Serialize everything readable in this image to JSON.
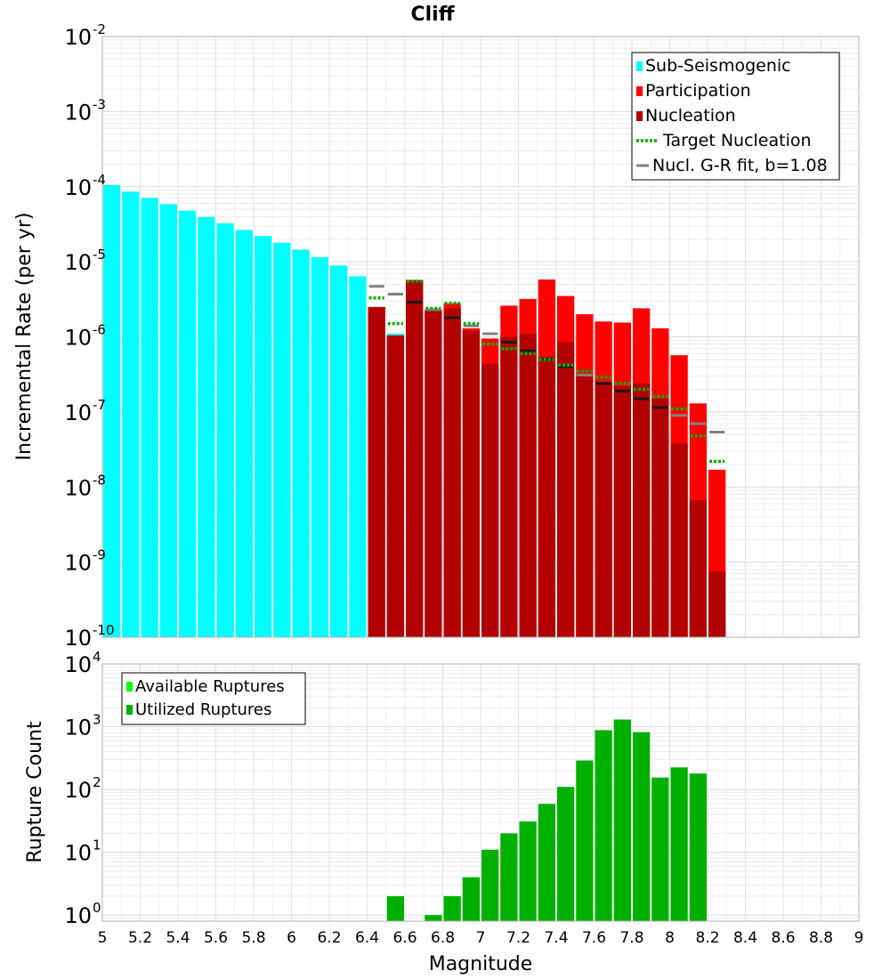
{
  "chart_data": [
    {
      "type": "bar",
      "title": "Cliff",
      "xlabel": "",
      "ylabel": "Incremental Rate (per yr)",
      "y_scale": "log",
      "ylim": [
        1e-10,
        0.01
      ],
      "xlim": [
        5,
        9
      ],
      "grid": true,
      "legend_position": "top-right",
      "y_tick_labels": [
        {
          "base": "10",
          "exp": "-2",
          "value": 0.01
        },
        {
          "base": "10",
          "exp": "-3",
          "value": 0.001
        },
        {
          "base": "10",
          "exp": "-4",
          "value": 0.0001
        },
        {
          "base": "10",
          "exp": "-5",
          "value": 1e-05
        },
        {
          "base": "10",
          "exp": "-6",
          "value": 1e-06
        },
        {
          "base": "10",
          "exp": "-7",
          "value": 1e-07
        },
        {
          "base": "10",
          "exp": "-8",
          "value": 1e-08
        },
        {
          "base": "10",
          "exp": "-9",
          "value": 1e-09
        },
        {
          "base": "10",
          "exp": "-10",
          "value": 1e-10
        }
      ],
      "bar_width": 0.1,
      "legend": [
        {
          "label": "Sub-Seismogenic",
          "color": "#00ffff",
          "symbol": "square"
        },
        {
          "label": "Participation",
          "color": "#ff0000",
          "symbol": "square"
        },
        {
          "label": "Nucleation",
          "color": "#b20000",
          "symbol": "square"
        },
        {
          "label": "Target Nucleation",
          "color": "#00b000",
          "symbol": "dotted-line"
        },
        {
          "label": "Nucl. G-R fit, b=1.08",
          "color": "#808080",
          "symbol": "line"
        }
      ],
      "series": [
        {
          "name": "Sub-Seismogenic",
          "color": "#00ffff",
          "x": [
            5.05,
            5.15,
            5.25,
            5.35,
            5.45,
            5.55,
            5.65,
            5.75,
            5.85,
            5.95,
            6.05,
            6.15,
            6.25,
            6.35
          ],
          "values": [
            0.000105,
            8.6e-05,
            7.1e-05,
            5.85e-05,
            4.8e-05,
            3.95e-05,
            3.25e-05,
            2.65e-05,
            2.2e-05,
            1.8e-05,
            1.45e-05,
            1.15e-05,
            8.9e-06,
            6.4e-06
          ]
        },
        {
          "name": "Participation",
          "color": "#ff0000",
          "x": [
            6.45,
            6.55,
            6.65,
            6.75,
            6.85,
            6.95,
            7.05,
            7.15,
            7.25,
            7.35,
            7.45,
            7.55,
            7.65,
            7.75,
            7.85,
            7.95,
            8.05,
            8.15,
            8.25
          ],
          "values": [
            2.5e-06,
            1.05e-06,
            5.7e-06,
            2.3e-06,
            2.8e-06,
            1.3e-06,
            9.5e-07,
            2.6e-06,
            3.2e-06,
            5.8e-06,
            3.5e-06,
            2e-06,
            1.6e-06,
            1.55e-06,
            2.4e-06,
            1.3e-06,
            5.7e-07,
            1.3e-07,
            1.7e-08
          ]
        },
        {
          "name": "Nucleation",
          "color": "#b20000",
          "x": [
            6.45,
            6.55,
            6.65,
            6.75,
            6.85,
            6.95,
            7.05,
            7.15,
            7.25,
            7.35,
            7.45,
            7.55,
            7.65,
            7.75,
            7.85,
            7.95,
            8.05,
            8.15,
            8.25
          ],
          "values": [
            2.5e-06,
            1.05e-06,
            5.7e-06,
            2.2e-06,
            2.4e-06,
            1.2e-06,
            4.4e-07,
            1e-06,
            1.1e-06,
            5.3e-07,
            8.5e-07,
            3e-07,
            2.5e-07,
            2.2e-07,
            2.4e-07,
            1.5e-07,
            3.8e-08,
            6.7e-09,
            7.5e-10
          ]
        },
        {
          "name": "Target Nucleation",
          "color": "#00b000",
          "x": [
            6.45,
            6.55,
            6.65,
            6.75,
            6.85,
            6.95,
            7.05,
            7.15,
            7.25,
            7.35,
            7.45,
            7.55,
            7.65,
            7.75,
            7.85,
            7.95,
            8.05,
            8.15,
            8.25
          ],
          "values": [
            3.3e-06,
            1.5e-06,
            5.5e-06,
            2.4e-06,
            2.8e-06,
            1.5e-06,
            8e-07,
            7e-07,
            6e-07,
            5e-07,
            4.2e-07,
            3.5e-07,
            2.9e-07,
            2.4e-07,
            2e-07,
            1.6e-07,
            1.1e-07,
            4.8e-08,
            2.2e-08
          ]
        },
        {
          "name": "Nucl. G-R fit, b=1.08",
          "color": "#808080",
          "x": [
            6.45,
            6.55,
            6.65,
            6.75,
            6.85,
            6.95,
            7.05,
            7.15,
            7.25,
            7.35,
            7.45,
            7.55,
            7.65,
            7.75,
            7.85,
            7.95,
            8.05,
            8.15,
            8.25
          ],
          "values": [
            4.7e-06,
            3.7e-06,
            2.9e-06,
            2.3e-06,
            1.8e-06,
            1.4e-06,
            1.1e-06,
            8.5e-07,
            6.5e-07,
            5.1e-07,
            4e-07,
            3.1e-07,
            2.4e-07,
            1.9e-07,
            1.5e-07,
            1.15e-07,
            9e-08,
            7e-08,
            5.4e-08
          ]
        }
      ]
    },
    {
      "type": "bar",
      "title": "",
      "xlabel": "Magnitude",
      "ylabel": "Rupture Count",
      "y_scale": "log",
      "ylim": [
        0.8,
        10000
      ],
      "xlim": [
        5,
        9
      ],
      "grid": true,
      "legend_position": "top-left",
      "x_tick_labels": [
        "5",
        "5.2",
        "5.4",
        "5.6",
        "5.8",
        "6",
        "6.2",
        "6.4",
        "6.6",
        "6.8",
        "7",
        "7.2",
        "7.4",
        "7.6",
        "7.8",
        "8",
        "8.2",
        "8.4",
        "8.6",
        "8.8",
        "9"
      ],
      "y_tick_labels": [
        {
          "base": "10",
          "exp": "4",
          "value": 10000
        },
        {
          "base": "10",
          "exp": "3",
          "value": 1000
        },
        {
          "base": "10",
          "exp": "2",
          "value": 100
        },
        {
          "base": "10",
          "exp": "1",
          "value": 10
        },
        {
          "base": "10",
          "exp": "0",
          "value": 1
        }
      ],
      "bar_width": 0.1,
      "legend": [
        {
          "label": "Available Ruptures",
          "color": "#00ff00",
          "symbol": "square"
        },
        {
          "label": "Utilized Ruptures",
          "color": "#00b000",
          "symbol": "square"
        }
      ],
      "series": [
        {
          "name": "Utilized Ruptures",
          "color": "#00b000",
          "x": [
            6.55,
            6.75,
            6.85,
            6.95,
            7.05,
            7.15,
            7.25,
            7.35,
            7.45,
            7.55,
            7.65,
            7.75,
            7.85,
            7.95,
            8.05,
            8.15
          ],
          "values": [
            2,
            1,
            2,
            4,
            11,
            20,
            31,
            59,
            110,
            290,
            880,
            1300,
            820,
            155,
            225,
            180
          ]
        }
      ]
    }
  ]
}
